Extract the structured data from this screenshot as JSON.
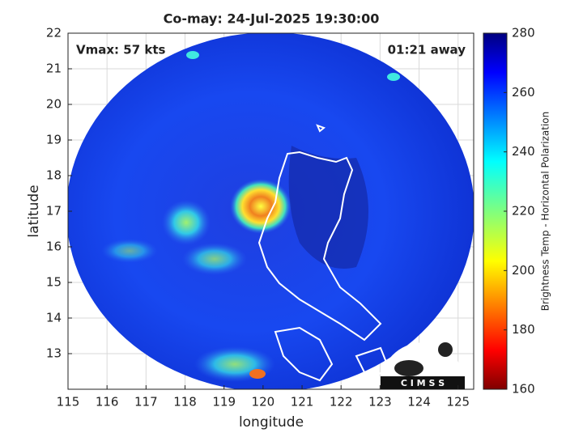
{
  "chart_data": {
    "type": "image",
    "title": "Co-may: 24-Jul-2025 19:30:00",
    "annotations": [
      "Vmax: 57 kts",
      "01:21 away"
    ],
    "x_label": "longitude",
    "y_label": "latitude",
    "xlim": [
      115,
      125.4
    ],
    "ylim": [
      12,
      22
    ],
    "xticks": [
      115,
      116,
      117,
      118,
      119,
      120,
      121,
      122,
      123,
      124,
      125
    ],
    "yticks": [
      13,
      14,
      15,
      16,
      17,
      18,
      19,
      20,
      21,
      22
    ],
    "grid": true,
    "colorbar": {
      "label": "Brightness Temp - Horizontal Polarization",
      "clim": [
        160,
        280
      ],
      "ticks": [
        160,
        180,
        200,
        220,
        240,
        260,
        280
      ],
      "colormap": "jet-reversed-low"
    },
    "logo": "C I M S S"
  }
}
